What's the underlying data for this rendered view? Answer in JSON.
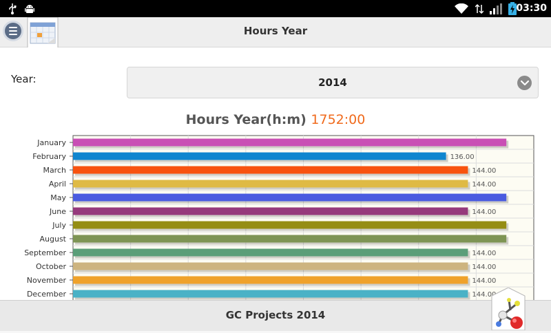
{
  "status_bar": {
    "time": "03:30",
    "icons": [
      "usb-icon",
      "android-debug-icon",
      "wifi-icon",
      "signal-icon",
      "battery-icon"
    ]
  },
  "action_bar": {
    "title": "Hours Year",
    "menu_icon": "menu-icon",
    "badge_icon": "calendar-icon"
  },
  "form": {
    "year_label": "Year:",
    "year_value": "2014"
  },
  "chart_title": {
    "prefix": "Hours Year(h:m)",
    "total": "1752:00"
  },
  "bottom_bar": {
    "title": "GC Projects 2014",
    "badge_icon": "molecule-icon"
  },
  "colors": {
    "accent": "#f06a1c",
    "chart_background": "#fdfcf3"
  },
  "chart_data": {
    "type": "bar",
    "orientation": "horizontal",
    "categories": [
      "January",
      "February",
      "March",
      "April",
      "May",
      "June",
      "July",
      "August",
      "September",
      "October",
      "November",
      "December"
    ],
    "values": [
      158,
      136,
      144,
      144,
      158,
      144,
      158,
      158,
      144,
      144,
      144,
      144
    ],
    "labels": [
      "",
      "136.00",
      "144.00",
      "144.00",
      "",
      "144.00",
      "",
      "",
      "144.00",
      "144.00",
      "144.00",
      "144.00"
    ],
    "colors": [
      "#c94fb5",
      "#0f86cf",
      "#f8530f",
      "#dfba45",
      "#4a5be0",
      "#963a7c",
      "#958d14",
      "#7e9454",
      "#5b9e79",
      "#cdb47f",
      "#efa22b",
      "#4ab2c6"
    ],
    "xlim": [
      0,
      168
    ],
    "grid": true,
    "legend": "none"
  }
}
